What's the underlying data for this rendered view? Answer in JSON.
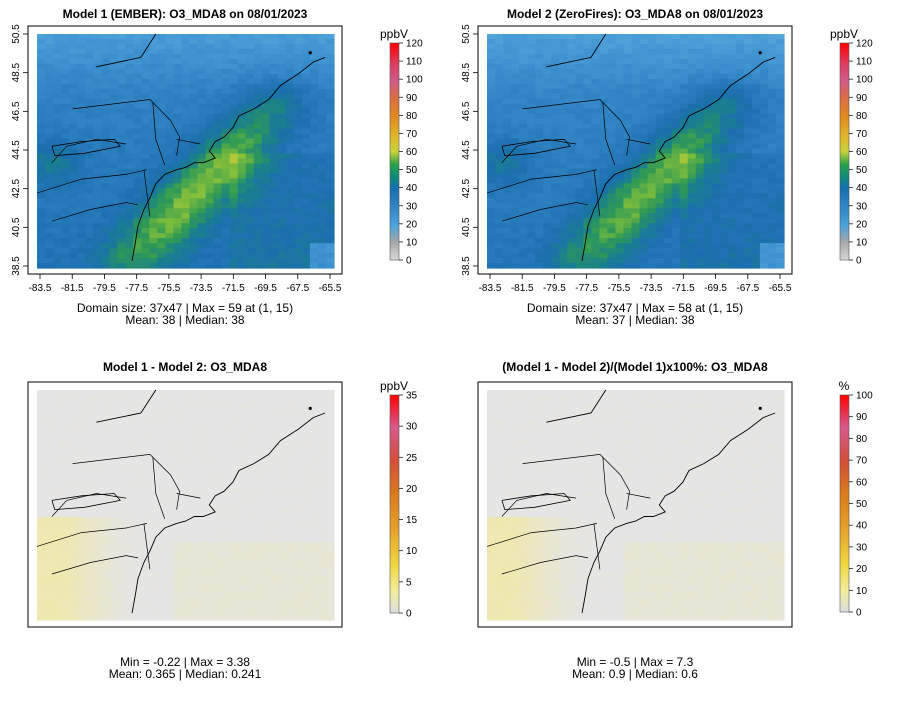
{
  "panels": [
    {
      "title": "Model 1 (EMBER): O3_MDA8 on 08/01/2023",
      "type": "conc",
      "colorbar": {
        "unit": "ppbV",
        "ticks": [
          "0",
          "10",
          "20",
          "30",
          "40",
          "50",
          "60",
          "70",
          "80",
          "90",
          "100",
          "110",
          "120"
        ]
      },
      "stats": [
        "Domain size: 37x47 | Max = 59 at (1, 15)",
        "Mean: 38 |  Median: 38"
      ],
      "y_ticks": [
        "38.5",
        "40.5",
        "42.5",
        "44.5",
        "46.5",
        "48.5",
        "50.5"
      ],
      "x_ticks": [
        "-83.5",
        "-81.5",
        "-79.5",
        "-77.5",
        "-75.5",
        "-73.5",
        "-71.5",
        "-69.5",
        "-67.5",
        "-65.5"
      ]
    },
    {
      "title": "Model 2 (ZeroFires): O3_MDA8 on 08/01/2023",
      "type": "conc",
      "colorbar": {
        "unit": "ppbV",
        "ticks": [
          "0",
          "10",
          "20",
          "30",
          "40",
          "50",
          "60",
          "70",
          "80",
          "90",
          "100",
          "110",
          "120"
        ]
      },
      "stats": [
        "Domain size: 37x47 | Max = 58 at (1, 15)",
        "Mean: 37 |  Median: 38"
      ],
      "y_ticks": [
        "38.5",
        "40.5",
        "42.5",
        "44.5",
        "46.5",
        "48.5",
        "50.5"
      ],
      "x_ticks": [
        "-83.5",
        "-81.5",
        "-79.5",
        "-77.5",
        "-75.5",
        "-73.5",
        "-71.5",
        "-69.5",
        "-67.5",
        "-65.5"
      ]
    },
    {
      "title": "Model 1 - Model 2: O3_MDA8",
      "type": "diff",
      "colorbar": {
        "unit": "ppbV",
        "ticks": [
          "0",
          "5",
          "10",
          "15",
          "20",
          "25",
          "30",
          "35"
        ]
      },
      "stats": [
        "Min = -0.22 | Max = 3.38",
        "Mean: 0.365 |  Median: 0.241"
      ],
      "y_ticks": [],
      "x_ticks": []
    },
    {
      "title": "(Model 1 - Model 2)/(Model 1)x100%: O3_MDA8",
      "type": "diff",
      "colorbar": {
        "unit": "%",
        "ticks": [
          "0",
          "10",
          "20",
          "30",
          "40",
          "50",
          "60",
          "70",
          "80",
          "90",
          "100"
        ]
      },
      "stats": [
        "Min = -0.5 | Max = 7.3",
        "Mean: 0.9 |  Median: 0.6"
      ],
      "y_ticks": [],
      "x_ticks": []
    }
  ],
  "colors": {
    "conc_scale": [
      "#bcbcbc",
      "#8f9fa6",
      "#4a98cf",
      "#2f84c4",
      "#1a72b4",
      "#0f7f8c",
      "#1c9b5a",
      "#8dc23f",
      "#d8d43a",
      "#e6a020",
      "#e07020",
      "#d24040",
      "#d42a6a"
    ],
    "diff_scale": [
      "#e8e8e8",
      "#f2eda0",
      "#f1d33a",
      "#e0a82a",
      "#d57a1a",
      "#cf4d2e",
      "#d23a6a",
      "#ea1a2a"
    ],
    "background_map": "#e5e5e5"
  }
}
